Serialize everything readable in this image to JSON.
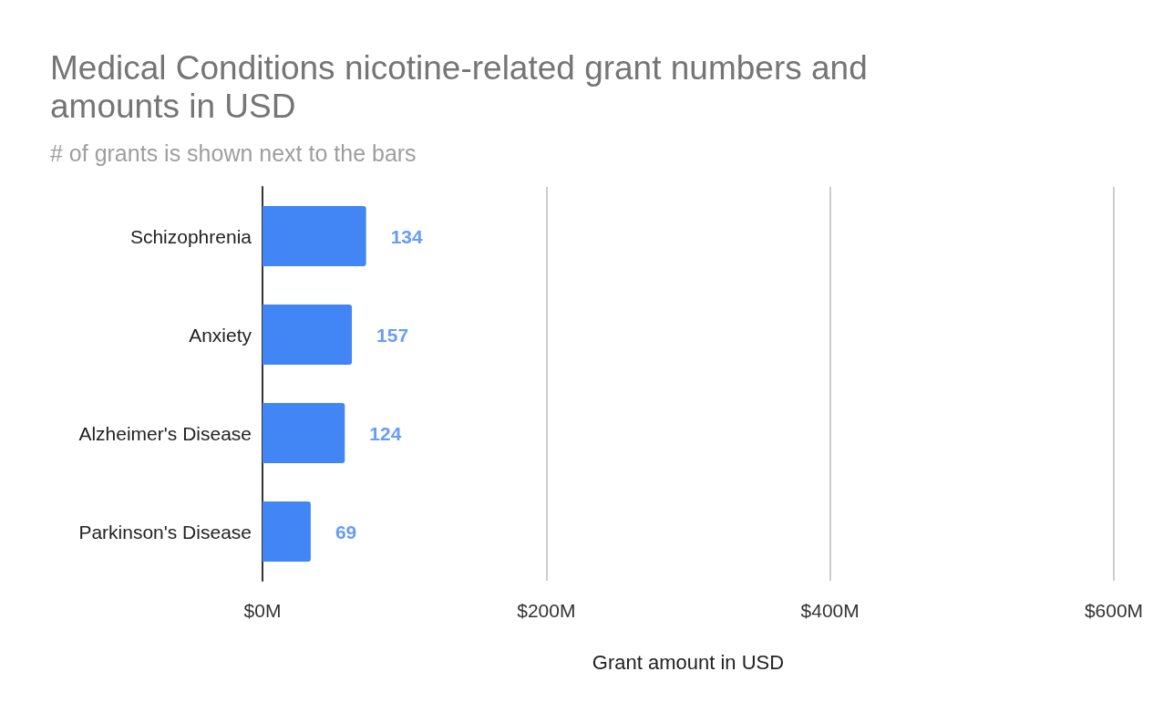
{
  "chart_data": {
    "type": "bar",
    "orientation": "horizontal",
    "title": "Medical Conditions nicotine-related grant numbers and amounts in USD",
    "subtitle": "# of grants is shown next to the bars",
    "xlabel": "Grant amount in USD",
    "categories": [
      "Schizophrenia",
      "Anxiety",
      "Alzheimer's Disease",
      "Parkinson's Disease"
    ],
    "values": [
      73,
      63,
      58,
      34
    ],
    "annotations": [
      {
        "text": "134",
        "x": 73,
        "y": "Schizophrenia"
      },
      {
        "text": "157",
        "x": 63,
        "y": "Anxiety"
      },
      {
        "text": "124",
        "x": 58,
        "y": "Alzheimer's Disease"
      },
      {
        "text": "69",
        "x": 34,
        "y": "Parkinson's Disease"
      }
    ],
    "color": "#4285f4",
    "xlim": [
      0,
      600
    ],
    "xticks": [
      {
        "value": 0,
        "label": "$0M"
      },
      {
        "value": 200,
        "label": "$200M"
      },
      {
        "value": 400,
        "label": "$400M"
      },
      {
        "value": 600,
        "label": "$600M"
      }
    ],
    "grid": "x"
  }
}
